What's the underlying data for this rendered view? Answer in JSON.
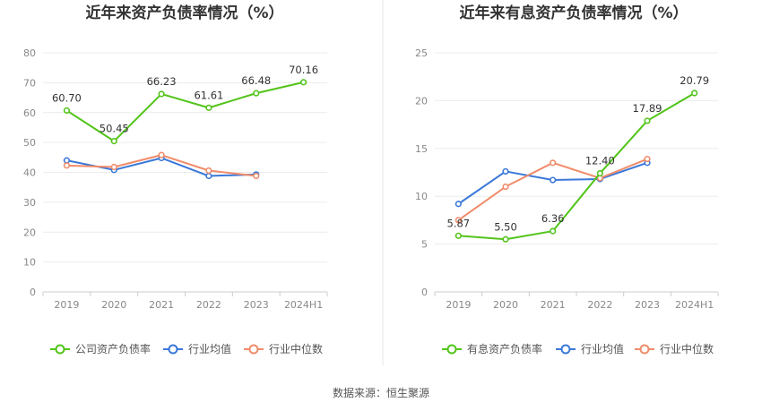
{
  "footer": {
    "source": "数据来源：恒生聚源"
  },
  "chart_data": [
    {
      "type": "line",
      "title": "近年来资产负债率情况（%）",
      "categories": [
        "2019",
        "2020",
        "2021",
        "2022",
        "2023",
        "2024H1"
      ],
      "ylim": [
        0,
        80
      ],
      "yticks": [
        0,
        10,
        20,
        30,
        40,
        50,
        60,
        70,
        80
      ],
      "grid": true,
      "legend_position": "bottom",
      "series": [
        {
          "name": "公司资产负债率",
          "color": "#52c41a",
          "values": [
            60.7,
            50.45,
            66.23,
            61.61,
            66.48,
            70.16
          ],
          "labels": [
            "60.70",
            "50.45",
            "66.23",
            "61.61",
            "66.48",
            "70.16"
          ]
        },
        {
          "name": "行业均值",
          "color": "#3a78d8",
          "values": [
            44.0,
            40.8,
            44.8,
            38.8,
            39.3,
            null
          ]
        },
        {
          "name": "行业中位数",
          "color": "#f08c6a",
          "values": [
            42.3,
            41.8,
            45.8,
            40.6,
            38.8,
            null
          ]
        }
      ]
    },
    {
      "type": "line",
      "title": "近年来有息资产负债率情况（%）",
      "categories": [
        "2019",
        "2020",
        "2021",
        "2022",
        "2023",
        "2024H1"
      ],
      "ylim": [
        0,
        25
      ],
      "yticks": [
        0,
        5,
        10,
        15,
        20,
        25
      ],
      "grid": true,
      "legend_position": "bottom",
      "series": [
        {
          "name": "有息资产负债率",
          "color": "#52c41a",
          "values": [
            5.87,
            5.5,
            6.36,
            12.4,
            17.89,
            20.79
          ],
          "labels": [
            "5.87",
            "5.50",
            "6.36",
            "12.40",
            "17.89",
            "20.79"
          ]
        },
        {
          "name": "行业均值",
          "color": "#3a78d8",
          "values": [
            9.2,
            12.6,
            11.7,
            11.8,
            13.5,
            null
          ]
        },
        {
          "name": "行业中位数",
          "color": "#f08c6a",
          "values": [
            7.5,
            11.0,
            13.5,
            11.9,
            13.9,
            null
          ]
        }
      ]
    }
  ]
}
